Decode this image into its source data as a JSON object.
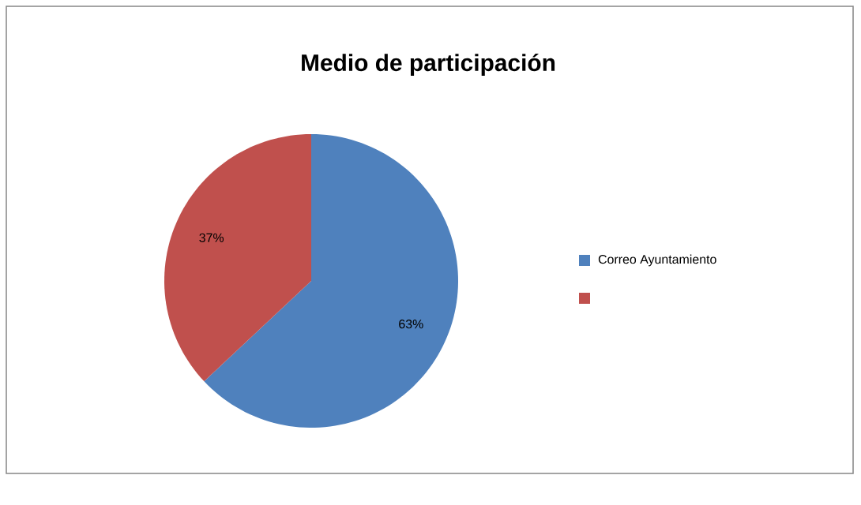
{
  "chart_data": {
    "type": "pie",
    "title": "Medio de participación",
    "categories": [
      "Correo Ayuntamiento",
      null
    ],
    "values": [
      63,
      37
    ],
    "value_labels": [
      "63%",
      "37%"
    ],
    "colors": [
      "#4f81bd",
      "#c0504d"
    ],
    "legend": "right"
  }
}
